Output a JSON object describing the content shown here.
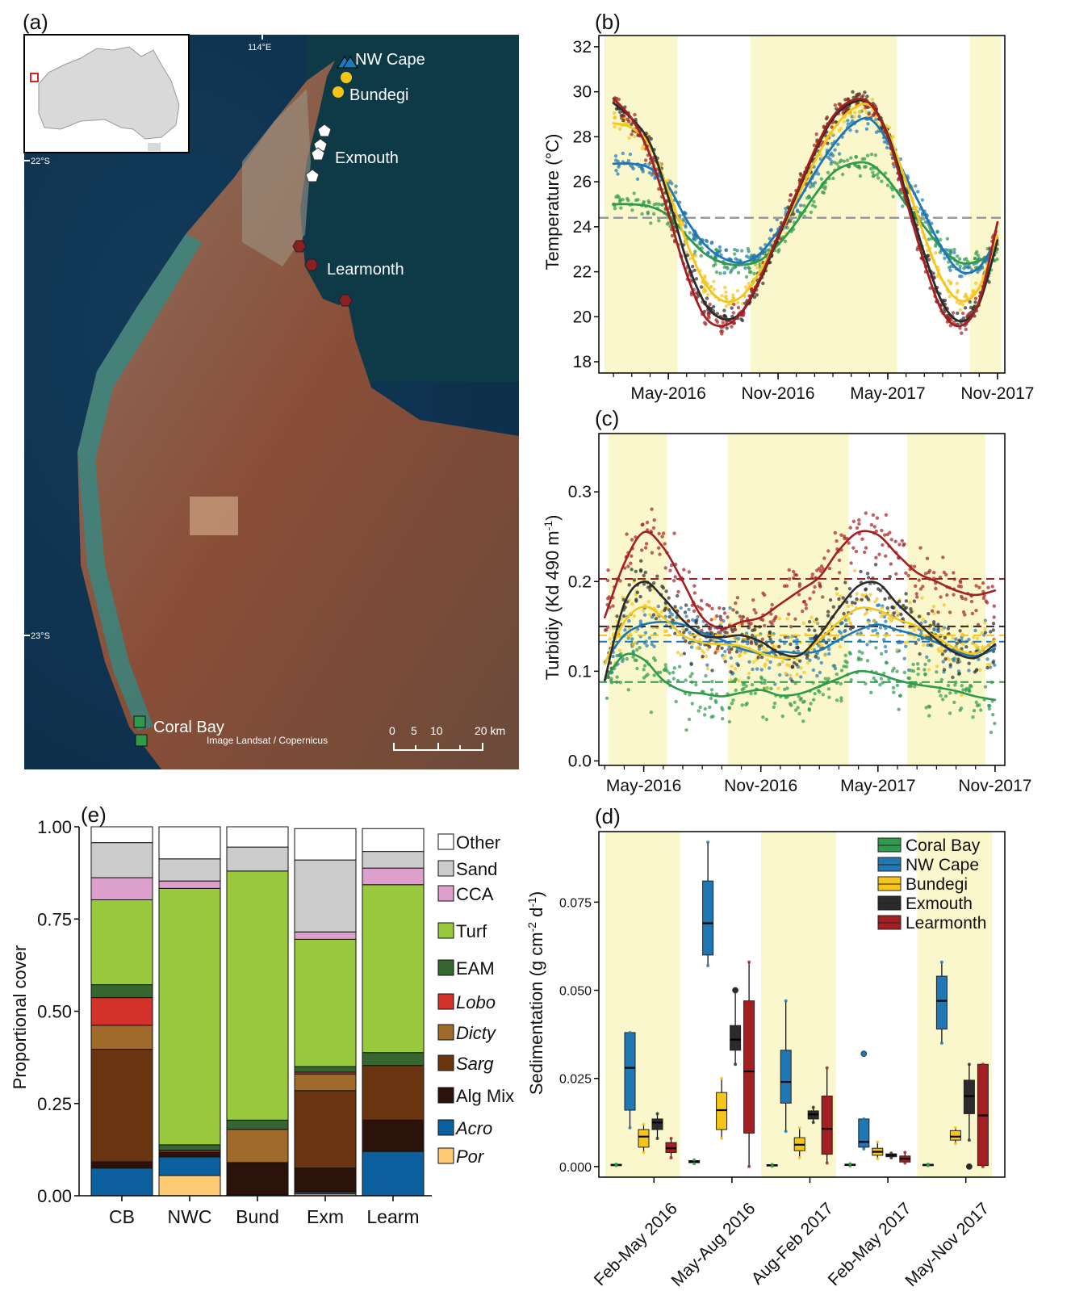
{
  "panels": {
    "a": {
      "label": "(a)",
      "sites": [
        "NW Cape",
        "Bundegi",
        "Exmouth",
        "Learmonth",
        "Coral Bay"
      ],
      "lat_labels": [
        "22°S",
        "23°S"
      ],
      "lon_label": "114°E",
      "credit": "Image Landsat / Copernicus",
      "scale_ticks": [
        "0",
        "5",
        "10",
        "20 km"
      ]
    },
    "b": {
      "label": "(b)"
    },
    "c": {
      "label": "(c)"
    },
    "d": {
      "label": "(d)"
    },
    "e": {
      "label": "(e)"
    }
  },
  "colors": {
    "Coral Bay": "#2e9a4a",
    "NW Cape": "#1f78b4",
    "Bundegi": "#f5c51a",
    "Exmouth": "#2b2b2b",
    "Learmonth": "#a31f22",
    "season_shade": "#faf7cc",
    "Other": "#ffffff",
    "Sand": "#cccccc",
    "CCA": "#dd9fcc",
    "Turf": "#99c93c",
    "EAM": "#36662f",
    "Lobo": "#d3322a",
    "Dicty": "#a06a2b",
    "Sarg": "#6a3410",
    "Alg Mix": "#2b130b",
    "Acro": "#0b5f9c",
    "Por": "#ffca74"
  },
  "chart_data": [
    {
      "panel": "b",
      "type": "line",
      "ylabel": "Temperature (°C)",
      "ylim": [
        17.5,
        32.5
      ],
      "yticks": [
        "18",
        "20",
        "22",
        "24",
        "26",
        "28",
        "30",
        "32"
      ],
      "xtick_labels": [
        "May-2016",
        "Nov-2016",
        "May-2017",
        "Nov-2017"
      ],
      "x_dates": [
        "2016-02",
        "2016-03",
        "2016-04",
        "2016-05",
        "2016-06",
        "2016-07",
        "2016-08",
        "2016-09",
        "2016-10",
        "2016-11",
        "2016-12",
        "2017-01",
        "2017-02",
        "2017-03",
        "2017-04",
        "2017-05",
        "2017-06",
        "2017-07",
        "2017-08",
        "2017-09",
        "2017-10",
        "2017-11"
      ],
      "reference_line": 24.4,
      "series": [
        {
          "name": "Coral Bay",
          "values": [
            25.0,
            25.0,
            24.9,
            24.5,
            23.6,
            22.8,
            22.4,
            22.3,
            22.5,
            23.2,
            24.2,
            25.4,
            26.4,
            26.8,
            26.8,
            26.1,
            25.0,
            24.0,
            23.0,
            22.4,
            22.5,
            23.0
          ]
        },
        {
          "name": "NW Cape",
          "values": [
            26.8,
            26.8,
            26.6,
            25.8,
            24.3,
            23.2,
            22.6,
            22.4,
            22.8,
            23.8,
            25.0,
            26.4,
            27.6,
            28.5,
            28.8,
            27.8,
            26.2,
            24.6,
            23.0,
            22.0,
            22.2,
            23.5
          ]
        },
        {
          "name": "Bundegi",
          "values": [
            28.6,
            28.4,
            27.6,
            25.6,
            23.3,
            21.5,
            20.7,
            20.9,
            22.0,
            23.5,
            25.2,
            26.9,
            28.3,
            29.2,
            29.4,
            28.2,
            26.0,
            23.6,
            21.6,
            20.7,
            21.3,
            23.6
          ]
        },
        {
          "name": "Exmouth",
          "values": [
            29.5,
            28.8,
            27.7,
            25.3,
            22.5,
            20.6,
            19.9,
            20.2,
            21.6,
            23.5,
            25.4,
            27.3,
            28.8,
            29.5,
            29.5,
            28.1,
            25.5,
            22.8,
            20.6,
            19.8,
            20.6,
            23.4
          ]
        },
        {
          "name": "Learmonth",
          "values": [
            29.7,
            28.8,
            27.2,
            24.6,
            21.9,
            20.0,
            19.6,
            20.2,
            21.7,
            23.6,
            25.5,
            27.4,
            28.9,
            29.6,
            29.5,
            28.0,
            25.2,
            22.4,
            20.2,
            19.6,
            20.7,
            24.2
          ]
        }
      ]
    },
    {
      "panel": "c",
      "type": "line",
      "ylabel": "Turbidiy (Kd 490 m",
      "ylabel_sup": "-1",
      "ylabel_end": ")",
      "ylim": [
        -0.005,
        0.365
      ],
      "yticks": [
        "0.0",
        "0.1",
        "0.2",
        "0.3"
      ],
      "xtick_labels": [
        "May-2016",
        "Nov-2016",
        "May-2017",
        "Nov-2017"
      ],
      "x_dates": [
        "2016-03",
        "2016-04",
        "2016-05",
        "2016-06",
        "2016-07",
        "2016-08",
        "2016-09",
        "2016-10",
        "2016-11",
        "2016-12",
        "2017-01",
        "2017-02",
        "2017-03",
        "2017-04",
        "2017-05",
        "2017-06",
        "2017-07",
        "2017-08",
        "2017-09",
        "2017-10",
        "2017-11"
      ],
      "means": {
        "Coral Bay": 0.088,
        "NW Cape": 0.133,
        "Bundegi": 0.14,
        "Exmouth": 0.15,
        "Learmonth": 0.203
      },
      "series": [
        {
          "name": "Coral Bay",
          "values": [
            0.09,
            0.118,
            0.113,
            0.09,
            0.078,
            0.075,
            0.072,
            0.076,
            0.079,
            0.073,
            0.075,
            0.083,
            0.092,
            0.1,
            0.097,
            0.09,
            0.085,
            0.082,
            0.078,
            0.072,
            0.068
          ]
        },
        {
          "name": "NW Cape",
          "values": [
            0.11,
            0.14,
            0.152,
            0.155,
            0.152,
            0.143,
            0.135,
            0.125,
            0.12,
            0.122,
            0.12,
            0.123,
            0.135,
            0.146,
            0.152,
            0.146,
            0.14,
            0.132,
            0.122,
            0.117,
            0.125
          ]
        },
        {
          "name": "Bundegi",
          "values": [
            0.108,
            0.155,
            0.172,
            0.16,
            0.14,
            0.132,
            0.13,
            0.128,
            0.12,
            0.115,
            0.118,
            0.135,
            0.155,
            0.17,
            0.168,
            0.158,
            0.15,
            0.138,
            0.125,
            0.12,
            0.135
          ]
        },
        {
          "name": "Exmouth",
          "values": [
            0.09,
            0.175,
            0.2,
            0.182,
            0.157,
            0.14,
            0.138,
            0.14,
            0.133,
            0.12,
            0.118,
            0.14,
            0.17,
            0.195,
            0.198,
            0.175,
            0.155,
            0.135,
            0.12,
            0.115,
            0.13
          ]
        },
        {
          "name": "Learmonth",
          "values": [
            0.16,
            0.22,
            0.255,
            0.238,
            0.2,
            0.16,
            0.148,
            0.155,
            0.16,
            0.175,
            0.19,
            0.205,
            0.235,
            0.255,
            0.252,
            0.23,
            0.21,
            0.2,
            0.19,
            0.185,
            0.19
          ]
        }
      ]
    },
    {
      "panel": "d",
      "type": "box",
      "ylabel": "Sedimentation (g cm",
      "ylabel_sup1": "-2",
      "ylabel_mid": " d",
      "ylabel_sup2": "-1",
      "ylabel_end": ")",
      "ylim": [
        -0.003,
        0.095
      ],
      "yticks": [
        "0.000",
        "0.025",
        "0.050",
        "0.075"
      ],
      "categories": [
        "Feb-May 2016",
        "May-Aug 2016",
        "Aug-Feb 2017",
        "Feb-May 2017",
        "May-Nov 2017"
      ],
      "legend": [
        "Coral Bay",
        "NW Cape",
        "Bundegi",
        "Exmouth",
        "Learmonth"
      ],
      "boxes": [
        [
          [
            0.0003,
            0.0004,
            0.0005,
            0.0006,
            0.0007
          ],
          [
            0.011,
            0.016,
            0.028,
            0.038,
            0.038
          ],
          [
            0.004,
            0.0055,
            0.0085,
            0.0105,
            0.012
          ],
          [
            0.008,
            0.0105,
            0.0125,
            0.0135,
            0.015
          ],
          [
            0.0025,
            0.004,
            0.0052,
            0.0068,
            0.008
          ]
        ],
        [
          [
            0.0008,
            0.0011,
            0.0014,
            0.0017,
            0.0019
          ],
          [
            0.057,
            0.06,
            0.069,
            0.081,
            0.092
          ],
          [
            0.008,
            0.0105,
            0.016,
            0.021,
            0.025
          ],
          [
            0.029,
            0.033,
            0.036,
            0.04,
            0.05
          ],
          [
            0.0,
            0.0095,
            0.027,
            0.047,
            0.058
          ]
        ],
        [
          [
            0.0001,
            0.0002,
            0.0004,
            0.0005,
            0.0006
          ],
          [
            0.01,
            0.018,
            0.024,
            0.033,
            0.047
          ],
          [
            0.0025,
            0.0045,
            0.0062,
            0.0082,
            0.011
          ],
          [
            0.0125,
            0.0135,
            0.0148,
            0.0158,
            0.0168
          ],
          [
            0.001,
            0.0035,
            0.0107,
            0.02,
            0.028
          ]
        ],
        [
          [
            0.0002,
            0.0003,
            0.0005,
            0.0007,
            0.0008
          ],
          [
            0.005,
            0.0055,
            0.007,
            0.0135,
            0.0135
          ],
          [
            0.0022,
            0.0032,
            0.0042,
            0.0052,
            0.007
          ],
          [
            0.0025,
            0.0028,
            0.0033,
            0.0036,
            0.0038
          ],
          [
            0.001,
            0.0013,
            0.0022,
            0.003,
            0.004
          ]
        ],
        [
          [
            0.0003,
            0.0004,
            0.0005,
            0.0006,
            0.0007
          ],
          [
            0.035,
            0.039,
            0.047,
            0.054,
            0.058
          ],
          [
            0.0065,
            0.0075,
            0.0085,
            0.0102,
            0.011
          ],
          [
            0.0075,
            0.015,
            0.02,
            0.0245,
            0.029
          ],
          [
            0.0,
            0.0003,
            0.0145,
            0.029,
            0.029
          ]
        ]
      ],
      "outliers": [
        [
          1,
          3,
          0.05
        ],
        [
          3,
          1,
          0.032
        ],
        [
          4,
          3,
          0.0
        ]
      ]
    },
    {
      "panel": "e",
      "type": "bar",
      "stacked": true,
      "ylabel": "Proportional cover",
      "ylim": [
        0,
        1
      ],
      "yticks": [
        "0.00",
        "0.25",
        "0.50",
        "0.75",
        "1.00"
      ],
      "categories": [
        "CB",
        "NWC",
        "Bund",
        "Exm",
        "Learm"
      ],
      "series": [
        {
          "name": "Por",
          "values": [
            0.0,
            0.055,
            0.0,
            0.005,
            0.0
          ]
        },
        {
          "name": "Acro",
          "values": [
            0.075,
            0.05,
            0.003,
            0.005,
            0.12
          ]
        },
        {
          "name": "Alg Mix",
          "values": [
            0.017,
            0.012,
            0.087,
            0.065,
            0.085
          ]
        },
        {
          "name": "Sarg",
          "values": [
            0.305,
            0.006,
            0.0,
            0.21,
            0.148
          ]
        },
        {
          "name": "Dicty",
          "values": [
            0.065,
            0.0,
            0.09,
            0.045,
            0.0
          ]
        },
        {
          "name": "Lobo",
          "values": [
            0.075,
            0.0,
            0.0,
            0.005,
            0.0
          ]
        },
        {
          "name": "EAM",
          "values": [
            0.035,
            0.015,
            0.025,
            0.015,
            0.035
          ]
        },
        {
          "name": "Turf",
          "values": [
            0.23,
            0.695,
            0.675,
            0.345,
            0.455
          ]
        },
        {
          "name": "CCA",
          "values": [
            0.06,
            0.02,
            0.0,
            0.02,
            0.045
          ]
        },
        {
          "name": "Sand",
          "values": [
            0.095,
            0.06,
            0.065,
            0.195,
            0.045
          ]
        },
        {
          "name": "Other",
          "values": [
            0.043,
            0.087,
            0.055,
            0.085,
            0.062
          ]
        }
      ],
      "legend": [
        "Other",
        "Sand",
        "CCA",
        "Turf",
        "EAM",
        "Lobo",
        "Dicty",
        "Sarg",
        "Alg Mix",
        "Acro",
        "Por"
      ],
      "italic_legend": [
        "Lobo",
        "Dicty",
        "Sarg",
        "Acro",
        "Por"
      ]
    }
  ]
}
